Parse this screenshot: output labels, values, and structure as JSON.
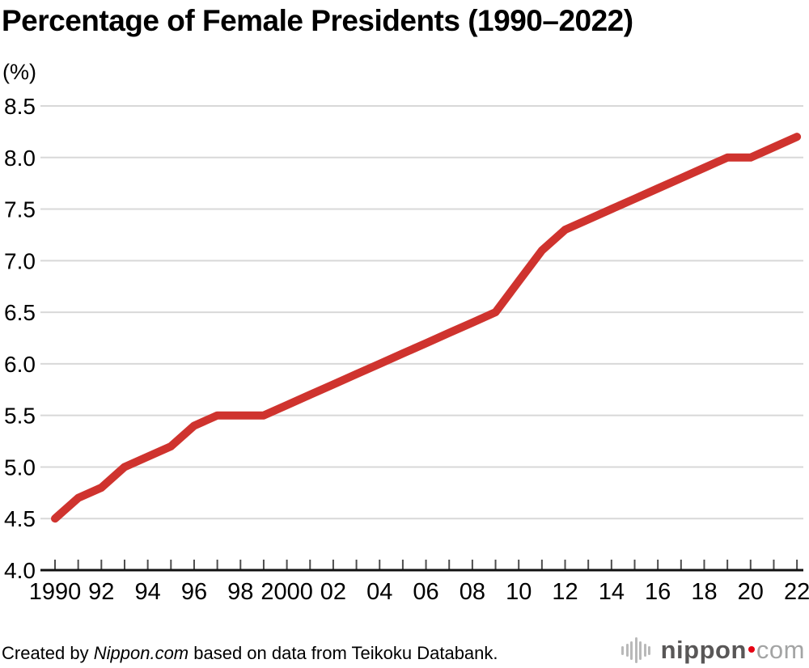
{
  "title": "Percentage of Female Presidents (1990–2022)",
  "unit_label": "(%)",
  "chart_data": {
    "type": "line",
    "title": "Percentage of Female Presidents (1990–2022)",
    "ylabel": "(%)",
    "xlabel": "",
    "ylim": [
      4.0,
      8.5
    ],
    "grid": "horizontal",
    "legend": "none",
    "line_color": "#cf332e",
    "grid_color": "#d8d8d8",
    "axis_color": "#111111",
    "tick_color": "#4d4d4d",
    "x": [
      1990,
      1991,
      1992,
      1993,
      1994,
      1995,
      1996,
      1997,
      1998,
      1999,
      2000,
      2001,
      2002,
      2003,
      2004,
      2005,
      2006,
      2007,
      2008,
      2009,
      2010,
      2011,
      2012,
      2013,
      2014,
      2015,
      2016,
      2017,
      2018,
      2019,
      2020,
      2021,
      2022
    ],
    "series": [
      {
        "name": "Percentage of female presidents",
        "values": [
          4.5,
          4.7,
          4.8,
          5.0,
          5.1,
          5.2,
          5.4,
          5.5,
          5.5,
          5.5,
          5.6,
          5.7,
          5.8,
          5.9,
          6.0,
          6.1,
          6.2,
          6.3,
          6.4,
          6.5,
          6.8,
          7.1,
          7.3,
          7.4,
          7.5,
          7.6,
          7.7,
          7.8,
          7.9,
          8.0,
          8.0,
          8.1,
          8.2
        ]
      }
    ],
    "ytick_labels": [
      "4.0",
      "4.5",
      "5.0",
      "5.5",
      "6.0",
      "6.5",
      "7.0",
      "7.5",
      "8.0",
      "8.5"
    ],
    "ytick_values": [
      4.0,
      4.5,
      5.0,
      5.5,
      6.0,
      6.5,
      7.0,
      7.5,
      8.0,
      8.5
    ],
    "xtick_years": [
      1990,
      1992,
      1994,
      1996,
      1998,
      2000,
      2002,
      2004,
      2006,
      2008,
      2010,
      2012,
      2014,
      2016,
      2018,
      2020,
      2022
    ],
    "xtick_labels": [
      "1990",
      "92",
      "94",
      "96",
      "98",
      "2000",
      "02",
      "04",
      "06",
      "08",
      "10",
      "12",
      "14",
      "16",
      "18",
      "20",
      "22"
    ]
  },
  "footer": {
    "prefix": "Created by ",
    "source_italic": "Nippon.com",
    "suffix": " based on data from Teikoku Databank."
  },
  "logo": {
    "name": "nippon",
    "tld": "com"
  }
}
